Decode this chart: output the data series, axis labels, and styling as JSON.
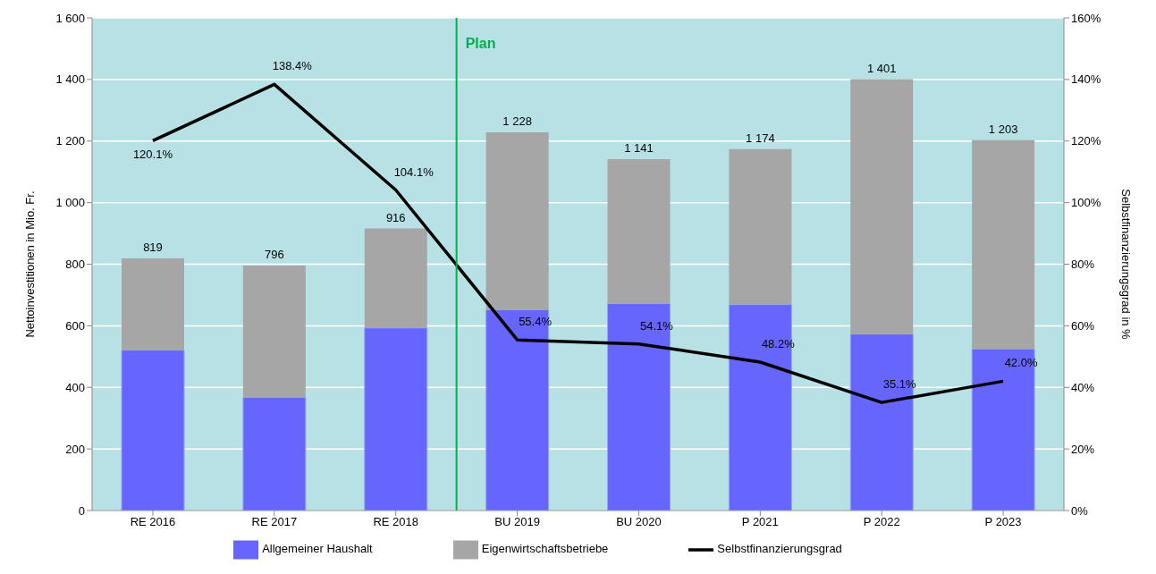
{
  "chart_data": {
    "type": "bar",
    "stacked": true,
    "ylabel": "Nettoinvestitionen  in Mio. Fr.",
    "y2label": "Selbstfinanzierungsgrad  in %",
    "categories": [
      "RE 2016",
      "RE 2017",
      "RE 2018",
      "BU 2019",
      "BU 2020",
      "P 2021",
      "P 2022",
      "P 2023"
    ],
    "series": [
      {
        "name": "Allgemeiner Haushalt",
        "color": "#6666ff",
        "values": [
          521,
          368,
          593,
          652,
          672,
          669,
          573,
          525
        ]
      },
      {
        "name": "Eigenwirtschaftsbetriebe",
        "color": "#a6a6a6",
        "values": [
          298,
          428,
          323,
          576,
          469,
          505,
          828,
          678
        ]
      },
      {
        "name": "Selbstfinanzierungsgrad",
        "type": "line",
        "axis": "y2",
        "color": "#000000",
        "values": [
          120.1,
          138.4,
          104.1,
          55.4,
          54.1,
          48.2,
          35.1,
          42.0
        ],
        "value_labels": [
          "120.1%",
          "138.4%",
          "104.1%",
          "55.4%",
          "54.1%",
          "48.2%",
          "35.1%",
          "42.0%"
        ]
      }
    ],
    "totals": [
      "819",
      "796",
      "916",
      "1 228",
      "1 141",
      "1 174",
      "1 401",
      "1 203"
    ],
    "ylim": [
      0,
      1600
    ],
    "yticks": [
      0,
      200,
      400,
      600,
      800,
      {
        "value": 1000,
        "label": "1 000"
      },
      {
        "value": 1200,
        "label": "1 200"
      },
      {
        "value": 1400,
        "label": "1 400"
      },
      {
        "value": 1600,
        "label": "1 600"
      }
    ],
    "y2lim": [
      0,
      160
    ],
    "y2ticks": [
      {
        "value": 0,
        "label": "0%"
      },
      {
        "value": 20,
        "label": "20%"
      },
      {
        "value": 40,
        "label": "40%"
      },
      {
        "value": 60,
        "label": "60%"
      },
      {
        "value": 80,
        "label": "80%"
      },
      {
        "value": 100,
        "label": "100%"
      },
      {
        "value": 120,
        "label": "120%"
      },
      {
        "value": 140,
        "label": "140%"
      },
      {
        "value": 160,
        "label": "160%"
      }
    ],
    "ref_lines": [
      {
        "axis": "x",
        "value": "BU 2019",
        "label": "Plan",
        "color": "#00b050"
      }
    ],
    "grid": "y",
    "legend": "bottom",
    "marker": "none",
    "line_style": "solid"
  }
}
